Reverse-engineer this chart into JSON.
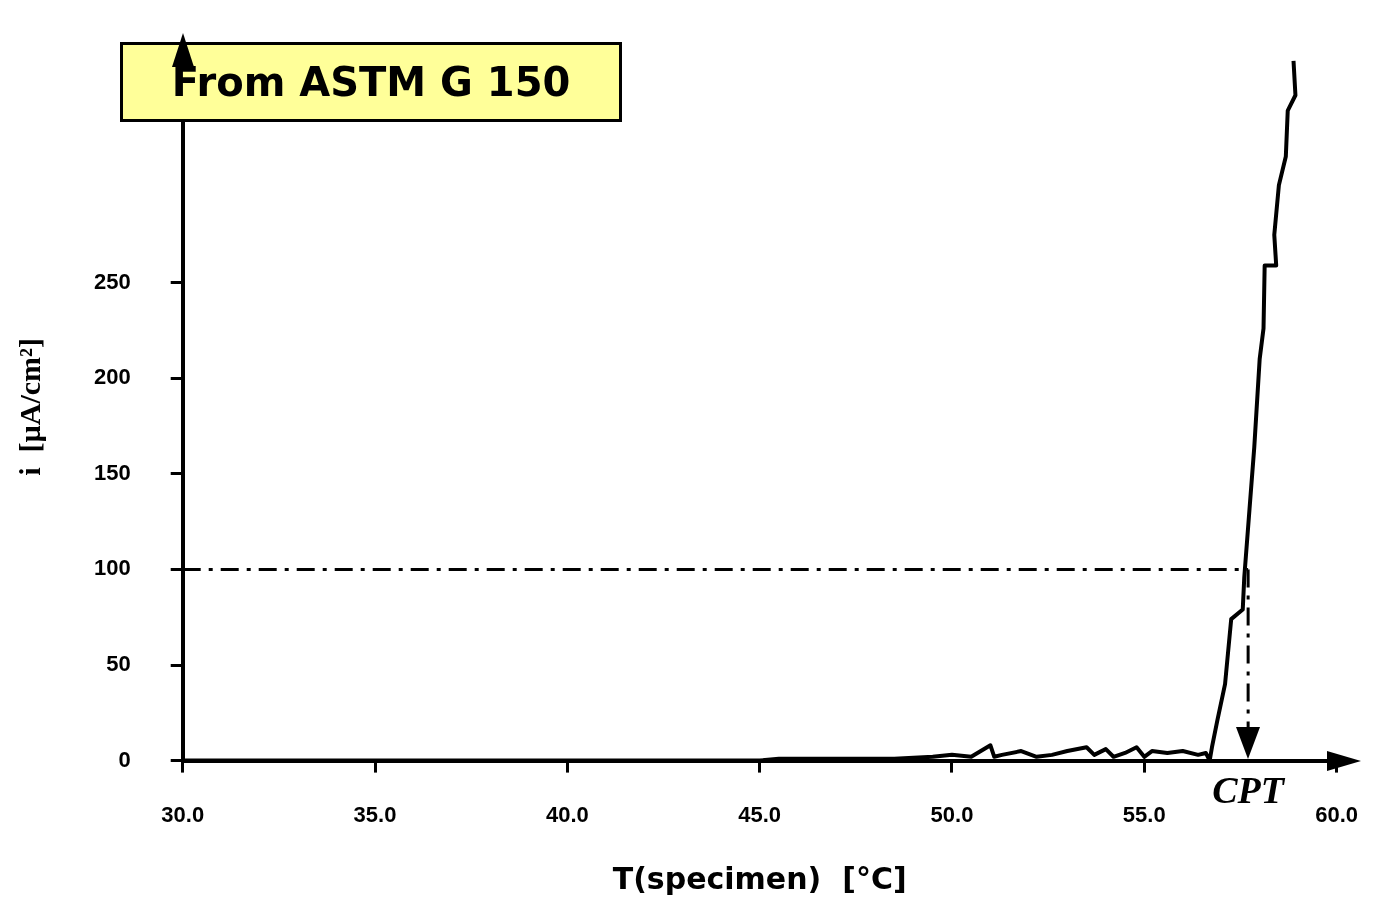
{
  "chart_data": {
    "type": "line",
    "title": "From ASTM G 150",
    "xlabel": "T(specimen)  [°C]",
    "ylabel": "i  [µA/cm²]",
    "series": [
      {
        "color": "#000000",
        "x": [
          30,
          35,
          40,
          45,
          45.5,
          46.5,
          47.5,
          48.5,
          49.5,
          50,
          50.5,
          51,
          51.1,
          51.3,
          51.8,
          52.2,
          52.6,
          53,
          53.5,
          53.7,
          54,
          54.2,
          54.5,
          54.8,
          55,
          55.2,
          55.6,
          56,
          56.4,
          56.6,
          56.7,
          56.76,
          56.9,
          57.1,
          57.26,
          57.56,
          57.6,
          57.86,
          58.0,
          58.1,
          58.13,
          58.43,
          58.38,
          58.5,
          58.68,
          58.73,
          58.93,
          58.88
        ],
        "values": [
          0,
          0,
          0,
          0,
          1,
          1,
          1,
          1,
          2,
          3,
          2,
          8,
          2,
          3,
          5,
          2,
          3,
          5,
          7,
          3,
          6,
          2,
          4,
          7,
          2,
          5,
          4,
          5,
          3,
          4,
          0,
          7,
          21,
          40,
          74,
          79,
          96,
          164,
          210,
          226,
          259,
          259,
          275,
          301,
          316,
          340,
          348,
          366
        ]
      }
    ],
    "ref_lines": [
      {
        "axis": "y",
        "value": 100,
        "line_style": "dashed"
      },
      {
        "axis": "x",
        "value": 57.7,
        "line_style": "dashed"
      }
    ],
    "annotations": [
      "CPT"
    ],
    "xlim": [
      30,
      60
    ],
    "xticks": [
      {
        "value": 30,
        "label": "30.0"
      },
      {
        "value": 35,
        "label": "35.0"
      },
      {
        "value": 40,
        "label": "40.0"
      },
      {
        "value": 45,
        "label": "45.0"
      },
      {
        "value": 50,
        "label": "50.0"
      },
      {
        "value": 55,
        "label": "55.0"
      },
      {
        "value": 60,
        "label": "60.0"
      }
    ],
    "ylim": [
      0,
      370
    ],
    "yticks": [
      0,
      50,
      100,
      150,
      200,
      250
    ],
    "grid": false,
    "legend": false,
    "marker": "none",
    "line_style": "solid"
  }
}
